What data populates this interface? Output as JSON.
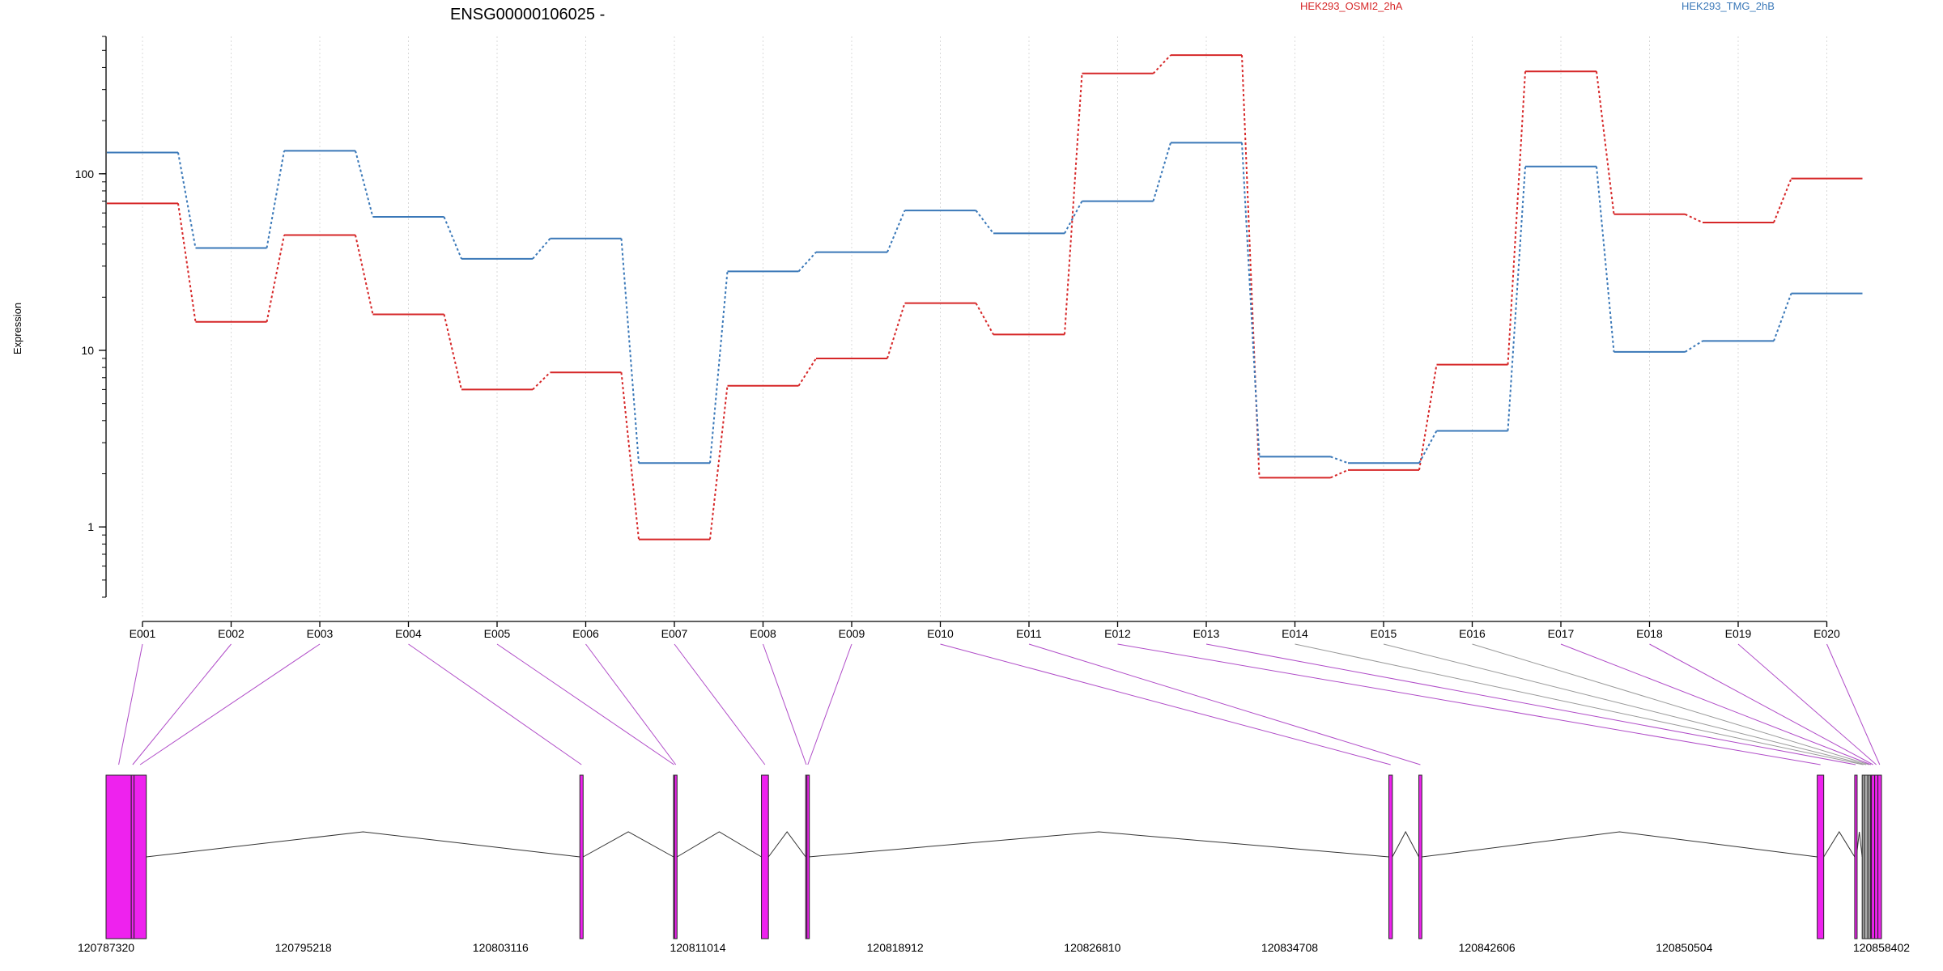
{
  "chart_data": {
    "type": "line",
    "title": "ENSG00000106025 -",
    "ylabel": "Expression",
    "xlabel": "",
    "yscale": "log",
    "ylim": [
      0.4,
      600
    ],
    "yticks": [
      1,
      10,
      100
    ],
    "ytick_labels": [
      "1",
      "10",
      "100"
    ],
    "grid": "vertical dotted lines at exon positions",
    "legend_position": "top",
    "categories": [
      "E001",
      "E002",
      "E003",
      "E004",
      "E005",
      "E006",
      "E007",
      "E008",
      "E009",
      "E010",
      "E011",
      "E012",
      "E013",
      "E014",
      "E015",
      "E016",
      "E017",
      "E018",
      "E019",
      "E020"
    ],
    "series": [
      {
        "name": "HEK293_OSMI2_2hA",
        "color": "#d62728",
        "values": [
          68,
          14.5,
          45,
          16,
          6,
          7.5,
          0.85,
          6.3,
          9,
          18.5,
          12.3,
          370,
          470,
          1.9,
          2.1,
          8.3,
          380,
          59,
          53,
          94
        ]
      },
      {
        "name": "HEK293_TMG_2hB",
        "color": "#3a78b8",
        "values": [
          132,
          38,
          135,
          57,
          33,
          43,
          2.3,
          28,
          36,
          62,
          46,
          70,
          150,
          2.5,
          2.3,
          3.5,
          110,
          9.8,
          11.3,
          21
        ]
      }
    ],
    "genomic_axis": {
      "range": [
        120787320,
        120858402
      ],
      "tick_labels": [
        "120787320",
        "120795218",
        "120803116",
        "120811014",
        "120818912",
        "120826810",
        "120834708",
        "120842606",
        "120850504",
        "120858402"
      ]
    },
    "exons": [
      {
        "id": "E001",
        "start": 120787320,
        "end": 120788330,
        "color": "#ee22ee"
      },
      {
        "id": "E002",
        "start": 120788330,
        "end": 120788440,
        "color": "#ee22ee"
      },
      {
        "id": "E003",
        "start": 120788440,
        "end": 120788930,
        "color": "#ee22ee"
      },
      {
        "id": "E004",
        "start": 120806290,
        "end": 120806420,
        "color": "#ee22ee"
      },
      {
        "id": "E005",
        "start": 120810040,
        "end": 120810080,
        "color": "#ee22ee"
      },
      {
        "id": "E006",
        "start": 120810080,
        "end": 120810180,
        "color": "#ee22ee"
      },
      {
        "id": "E007",
        "start": 120813560,
        "end": 120813840,
        "color": "#ee22ee"
      },
      {
        "id": "E008",
        "start": 120815330,
        "end": 120815380,
        "color": "#ee22ee"
      },
      {
        "id": "E009",
        "start": 120815380,
        "end": 120815450,
        "color": "#ee22ee"
      },
      {
        "id": "E010",
        "start": 120838680,
        "end": 120838820,
        "color": "#ee22ee"
      },
      {
        "id": "E011",
        "start": 120839880,
        "end": 120840000,
        "color": "#ee22ee"
      },
      {
        "id": "E012",
        "start": 120855830,
        "end": 120856090,
        "color": "#ee22ee"
      },
      {
        "id": "E013",
        "start": 120857330,
        "end": 120857400,
        "color": "#ee22ee"
      },
      {
        "id": "E014",
        "start": 120857630,
        "end": 120857720,
        "color": "#aaaaaa"
      },
      {
        "id": "E015",
        "start": 120857720,
        "end": 120857860,
        "color": "#aaaaaa"
      },
      {
        "id": "E016",
        "start": 120857860,
        "end": 120857960,
        "color": "#aaaaaa"
      },
      {
        "id": "E017",
        "start": 120857960,
        "end": 120858000,
        "color": "#ee22ee"
      },
      {
        "id": "E018",
        "start": 120858000,
        "end": 120858130,
        "color": "#ee22ee"
      },
      {
        "id": "E019",
        "start": 120858130,
        "end": 120858260,
        "color": "#ee22ee"
      },
      {
        "id": "E020",
        "start": 120858260,
        "end": 120858402,
        "color": "#ee22ee"
      }
    ],
    "introns": [
      [
        120788930,
        120806290
      ],
      [
        120806420,
        120810040
      ],
      [
        120810180,
        120813560
      ],
      [
        120813840,
        120815330
      ],
      [
        120815450,
        120838680
      ],
      [
        120838820,
        120839880
      ],
      [
        120840000,
        120855830
      ],
      [
        120856090,
        120857330
      ],
      [
        120857400,
        120857630
      ],
      [
        120857720,
        120857860
      ],
      [
        120857960,
        120858130
      ]
    ]
  }
}
